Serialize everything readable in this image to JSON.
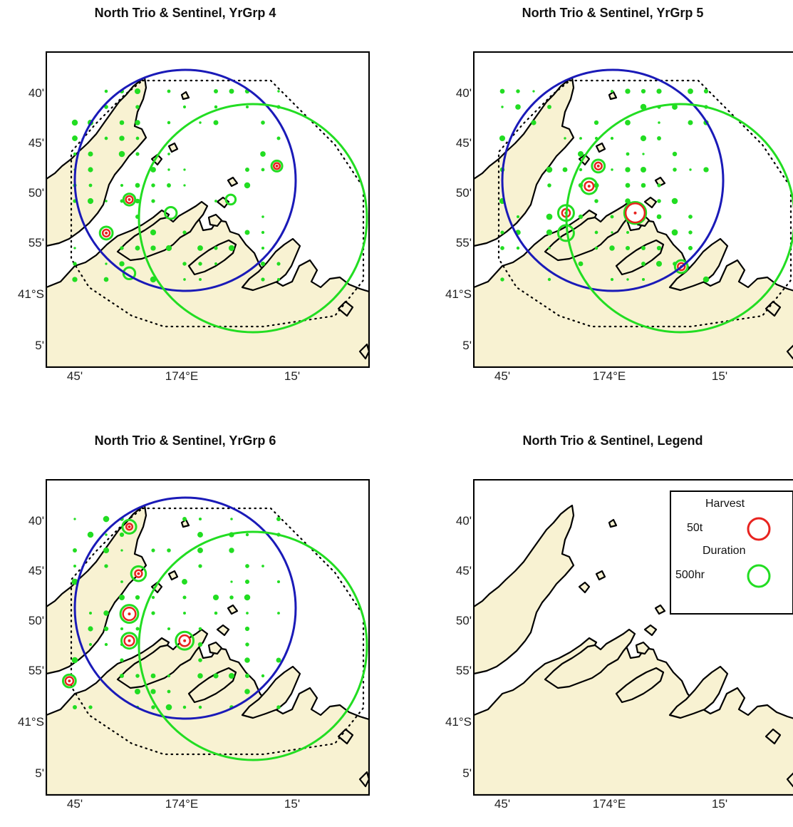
{
  "panels": [
    {
      "title": "North Trio & Sentinel, YrGrp 4"
    },
    {
      "title": "North Trio & Sentinel, YrGrp 5"
    },
    {
      "title": "North Trio & Sentinel, YrGrp 6"
    },
    {
      "title": "North Trio & Sentinel, Legend"
    }
  ],
  "axes": {
    "y_labels": [
      "40'",
      "45'",
      "50'",
      "55'",
      "41°S",
      "5'"
    ],
    "x_labels": [
      "45'",
      "174°E",
      "15'"
    ]
  },
  "legend": {
    "harvest_heading": "Harvest",
    "harvest_value": "50t",
    "duration_heading": "Duration",
    "duration_value": "500hr",
    "harvest_color": "#e8231f",
    "duration_color": "#22dd22"
  },
  "colors": {
    "land": "#f8f2d2",
    "coast": "#000000",
    "blue_circle": "#1a1ab8",
    "green_circle": "#22dd22",
    "harvest": "#e8231f",
    "duration": "#22dd22"
  },
  "chart_data": [
    {
      "type": "map-bubble",
      "title": "North Trio & Sentinel, YrGrp 4",
      "points": [
        {
          "lon": 173.83,
          "lat": -40.96,
          "duration": 0.3
        },
        {
          "lon": 173.83,
          "lat": -40.85,
          "duration": 0.3,
          "harvest": 0.15
        },
        {
          "lon": 173.92,
          "lat": -40.87,
          "duration": 0.3
        },
        {
          "lon": 174.05,
          "lat": -40.85,
          "duration": 0.2
        },
        {
          "lon": 174.15,
          "lat": -40.8,
          "duration": 0.25,
          "harvest": 0.1
        },
        {
          "lon": 173.78,
          "lat": -40.9,
          "duration": 0.35,
          "harvest": 0.15
        }
      ]
    },
    {
      "type": "map-bubble",
      "title": "North Trio & Sentinel, YrGrp 5",
      "points": [
        {
          "lon": 174.0,
          "lat": -40.87,
          "duration": 0.8,
          "harvest": 0.8
        },
        {
          "lon": 173.9,
          "lat": -40.83,
          "duration": 0.5,
          "harvest": 0.25
        },
        {
          "lon": 173.85,
          "lat": -40.87,
          "duration": 0.5,
          "harvest": 0.2
        },
        {
          "lon": 173.85,
          "lat": -40.9,
          "duration": 0.5
        },
        {
          "lon": 173.92,
          "lat": -40.8,
          "duration": 0.35,
          "harvest": 0.15
        },
        {
          "lon": 174.1,
          "lat": -40.95,
          "duration": 0.35,
          "harvest": 0.15
        }
      ]
    },
    {
      "type": "map-bubble",
      "title": "North Trio & Sentinel, YrGrp 6",
      "points": [
        {
          "lon": 173.83,
          "lat": -40.83,
          "duration": 0.6,
          "harvest": 0.45
        },
        {
          "lon": 173.83,
          "lat": -40.87,
          "duration": 0.5,
          "harvest": 0.3
        },
        {
          "lon": 173.95,
          "lat": -40.87,
          "duration": 0.6,
          "harvest": 0.35
        },
        {
          "lon": 173.85,
          "lat": -40.77,
          "duration": 0.45,
          "harvest": 0.15
        },
        {
          "lon": 173.83,
          "lat": -40.7,
          "duration": 0.4,
          "harvest": 0.1
        },
        {
          "lon": 173.7,
          "lat": -40.93,
          "duration": 0.35,
          "harvest": 0.2
        }
      ]
    }
  ]
}
